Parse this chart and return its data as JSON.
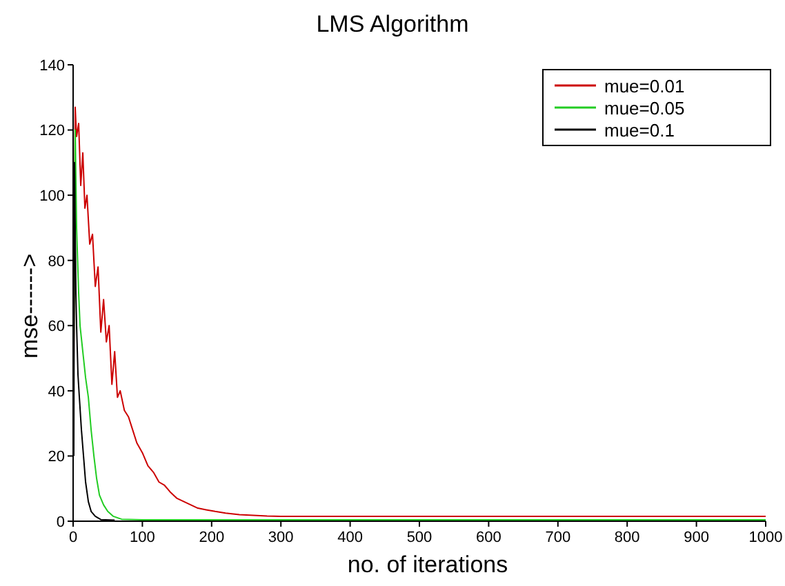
{
  "chart_data": {
    "type": "line",
    "title": "LMS Algorithm",
    "xlabel": "no. of iterations",
    "ylabel": "mse------>",
    "xlim": [
      0,
      1000
    ],
    "ylim": [
      0,
      140
    ],
    "xticks": [
      0,
      100,
      200,
      300,
      400,
      500,
      600,
      700,
      800,
      900,
      1000
    ],
    "yticks": [
      0,
      20,
      40,
      60,
      80,
      100,
      120,
      140
    ],
    "legend": "top right",
    "series": [
      {
        "name": "mue=0.01",
        "color": "#cc0000",
        "x": [
          1,
          3,
          5,
          8,
          11,
          14,
          17,
          20,
          24,
          28,
          32,
          36,
          40,
          44,
          48,
          52,
          56,
          60,
          64,
          68,
          74,
          80,
          86,
          92,
          100,
          108,
          116,
          124,
          132,
          140,
          150,
          160,
          170,
          180,
          192,
          205,
          220,
          240,
          260,
          280,
          300,
          340,
          400,
          500,
          600,
          700,
          800,
          900,
          1000
        ],
        "values": [
          50,
          127,
          118,
          122,
          103,
          113,
          96,
          100,
          85,
          88,
          72,
          78,
          58,
          68,
          55,
          60,
          42,
          52,
          38,
          40,
          34,
          32,
          28,
          24,
          21,
          17,
          15,
          12,
          11,
          9,
          7,
          6,
          5,
          4,
          3.5,
          3,
          2.5,
          2,
          1.8,
          1.6,
          1.5,
          1.5,
          1.5,
          1.5,
          1.5,
          1.5,
          1.5,
          1.5,
          1.5
        ]
      },
      {
        "name": "mue=0.05",
        "color": "#22cc22",
        "x": [
          1,
          3,
          5,
          8,
          10,
          14,
          18,
          22,
          26,
          30,
          34,
          38,
          44,
          50,
          58,
          70,
          100,
          200,
          400,
          600,
          800,
          1000
        ],
        "values": [
          55,
          120,
          90,
          70,
          60,
          52,
          44,
          38,
          28,
          20,
          13,
          8,
          5,
          3,
          1.5,
          0.6,
          0.4,
          0.4,
          0.4,
          0.4,
          0.4,
          0.4
        ]
      },
      {
        "name": "mue=0.1",
        "color": "#000000",
        "x": [
          1,
          2,
          3,
          4,
          5,
          7,
          9,
          12,
          15,
          18,
          22,
          26,
          32,
          40,
          60
        ],
        "values": [
          20,
          110,
          90,
          70,
          60,
          45,
          38,
          28,
          20,
          12,
          6,
          3,
          1.5,
          0.5,
          0.3
        ]
      }
    ]
  }
}
